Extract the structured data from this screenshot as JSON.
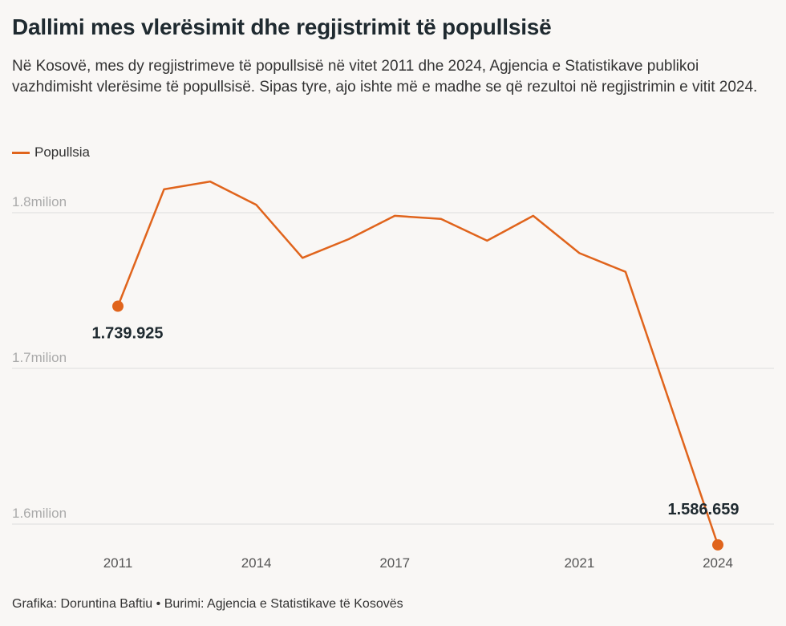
{
  "title": "Dallimi mes vlerësimit dhe regjistrimit të popullsisë",
  "subtitle": "Në Kosovë, mes dy regjistrimeve të popullsisë në vitet 2011 dhe 2024, Agjencia e Statistikave publikoi vazhdimisht vlerësime të popullsisë. Sipas tyre, ajo ishte më e madhe se që rezultoi në regjistrimin e vitit 2024.",
  "footer": "Grafika: Doruntina Baftiu • Burimi: Agjencia e Statistikave të Kosovës",
  "colors": {
    "line": "#e0641c",
    "grid": "#dddddd"
  },
  "chart_data": {
    "type": "line",
    "title": "Dallimi mes vlerësimit dhe regjistrimit të popullsisë",
    "xlabel": "",
    "ylabel": "",
    "legend": "top-left",
    "grid": true,
    "series": [
      {
        "name": "Popullsia",
        "x": [
          2011,
          2012,
          2013,
          2014,
          2015,
          2016,
          2017,
          2018,
          2019,
          2020,
          2021,
          2022,
          2024
        ],
        "values": [
          1739925,
          1815000,
          1820000,
          1805000,
          1771000,
          1783000,
          1798000,
          1796000,
          1782000,
          1798000,
          1774000,
          1762000,
          1586659
        ]
      }
    ],
    "xticks": [
      2011,
      2014,
      2017,
      2021,
      2024
    ],
    "xtick_labels": [
      "2011",
      "2014",
      "2017",
      "2021",
      "2024"
    ],
    "yticks": [
      1600000,
      1700000,
      1800000
    ],
    "ytick_labels": [
      "1.6milion",
      "1.7milion",
      "1.8milion"
    ],
    "ylim": [
      1580000,
      1830000
    ],
    "annotations": [
      {
        "x": 2011,
        "label": "1.739.925"
      },
      {
        "x": 2024,
        "label": "1.586.659"
      }
    ]
  }
}
